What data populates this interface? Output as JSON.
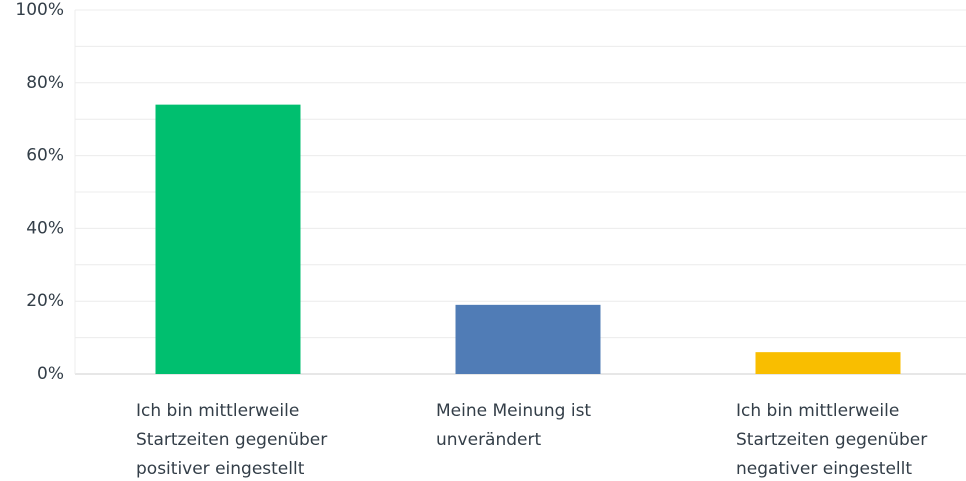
{
  "chart_data": {
    "type": "bar",
    "categories": [
      "Ich bin mittlerweile Startzeiten gegenüber positiver eingestellt",
      "Meine Meinung ist unverändert",
      "Ich bin mittlerweile Startzeiten gegenüber negativer eingestellt"
    ],
    "values": [
      74,
      19,
      6
    ],
    "colors": [
      "#00bf6f",
      "#507cb6",
      "#f9be00"
    ],
    "ylim": [
      0,
      100
    ],
    "yticks": [
      {
        "value": 0,
        "label": "0%"
      },
      {
        "value": 20,
        "label": "20%"
      },
      {
        "value": 40,
        "label": "40%"
      },
      {
        "value": 60,
        "label": "60%"
      },
      {
        "value": 80,
        "label": "80%"
      },
      {
        "value": 100,
        "label": "100%"
      }
    ],
    "minor_yticks": [
      10,
      30,
      50,
      70,
      90
    ],
    "grid": true
  }
}
